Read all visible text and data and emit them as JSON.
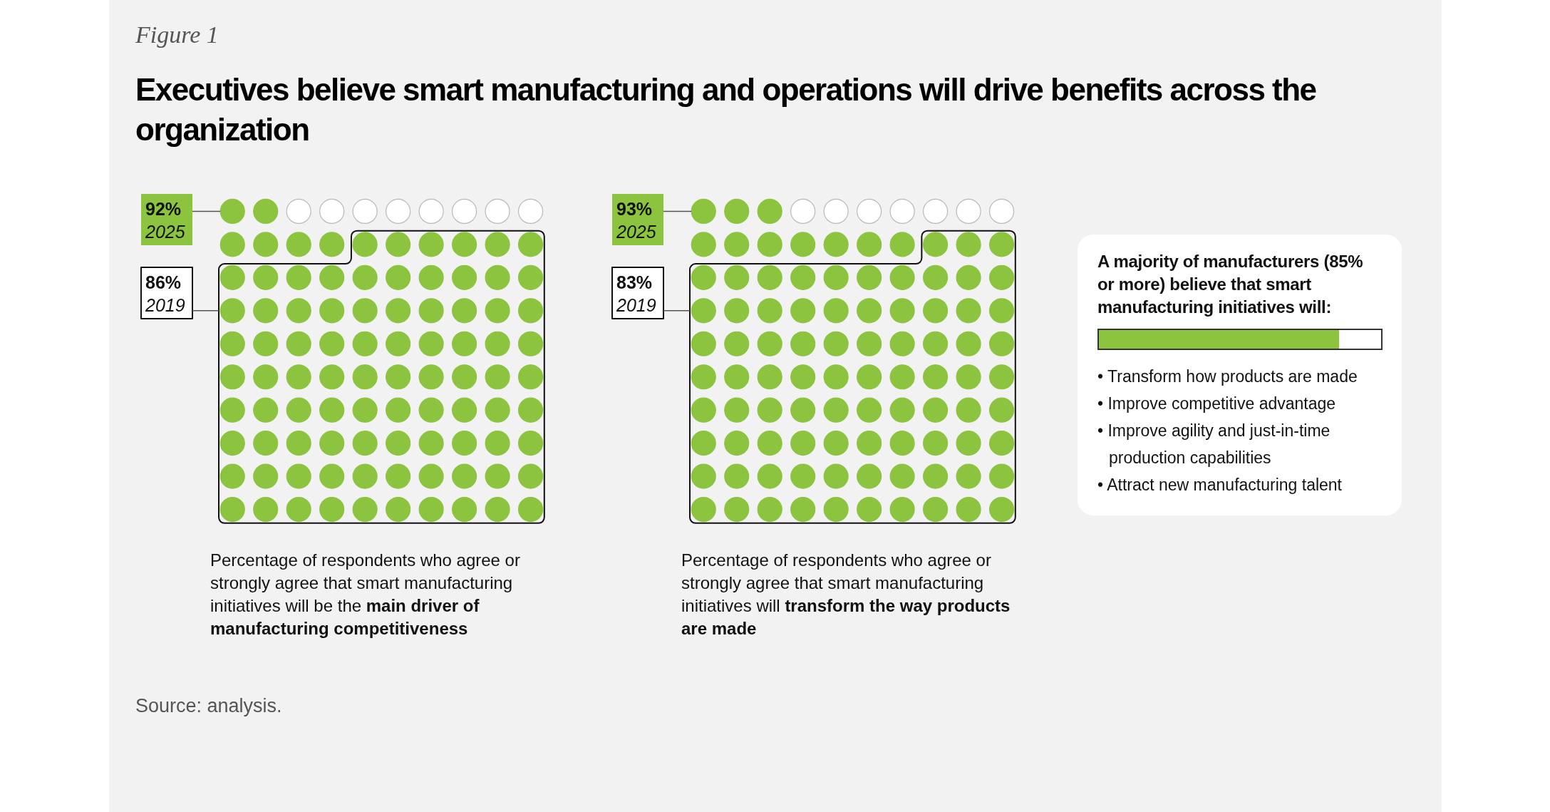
{
  "chart_data": [
    {
      "type": "other",
      "title": "Executives believe smart manufacturing and operations will drive benefits across the organization",
      "categories": [
        "2025",
        "2019"
      ],
      "values": [
        92,
        86
      ],
      "value_labels": [
        "92%",
        "86%"
      ],
      "colors": [
        "#8cc43f",
        "#ffffff"
      ],
      "annotations": [
        "Figure 1",
        "Percentage of respondents who agree or strongly agree that smart manufacturing initiatives will be the ",
        "main driver of manufacturing competitiveness",
        "Source: analysis."
      ]
    },
    {
      "type": "other",
      "categories": [
        "2025",
        "2019"
      ],
      "values": [
        93,
        83
      ],
      "value_labels": [
        "93%",
        "83%"
      ],
      "colors": [
        "#8cc43f",
        "#ffffff"
      ],
      "annotations": [
        "Percentage of respondents who agree or strongly agree that smart manufacturing initiatives will ",
        "transform the way products are made"
      ]
    },
    {
      "type": "other",
      "title": "A majority of manufacturers (85% or more) believe that smart manufacturing initiatives will:",
      "annotations": [
        "• Transform how products are made",
        "• Improve competitive advantage",
        "• Improve agility and just-in-time production capabilities",
        "• Attract new manufacturing talent"
      ]
    }
  ]
}
